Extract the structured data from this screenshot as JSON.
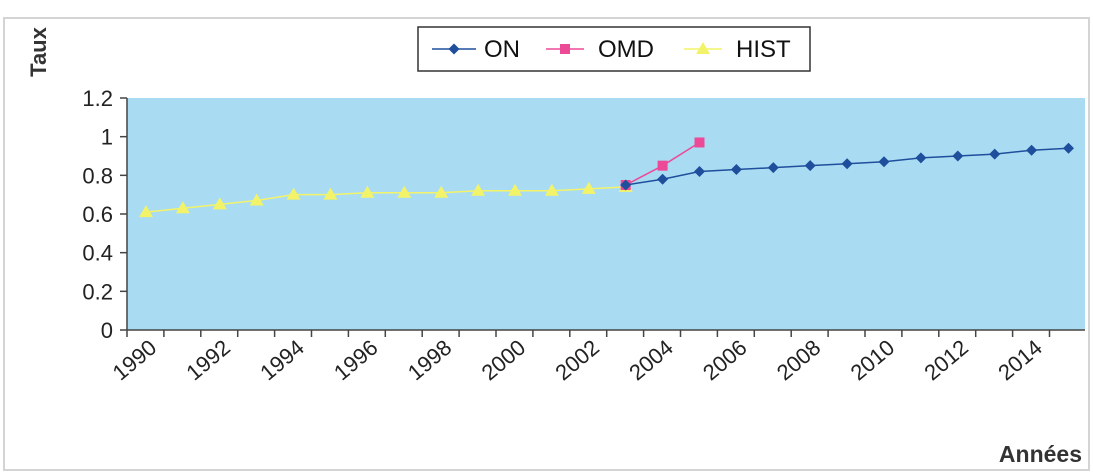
{
  "chart_data": {
    "type": "line",
    "title": "",
    "xlabel": "Années",
    "ylabel": "Taux",
    "xlim": [
      1990,
      2015
    ],
    "ylim": [
      0,
      1.2
    ],
    "yticks": [
      0,
      0.2,
      0.4,
      0.6,
      0.8,
      1,
      1.2
    ],
    "ytick_labels": [
      "0",
      "0.2",
      "0.4",
      "0.6",
      "0.8",
      "1",
      "1.2"
    ],
    "xtick_labels": [
      "1990",
      "1992",
      "1994",
      "1996",
      "1998",
      "2000",
      "2002",
      "2004",
      "2006",
      "2008",
      "2010",
      "2012",
      "2014"
    ],
    "grid": false,
    "legend_position": "top-center",
    "plot_background": "#a9dcf2",
    "series": [
      {
        "name": "ON",
        "color": "#1f4e9c",
        "marker": "diamond",
        "x": [
          2003,
          2004,
          2005,
          2006,
          2007,
          2008,
          2009,
          2010,
          2011,
          2012,
          2013,
          2014,
          2015
        ],
        "values": [
          0.75,
          0.78,
          0.82,
          0.83,
          0.84,
          0.85,
          0.86,
          0.87,
          0.89,
          0.9,
          0.91,
          0.93,
          0.94
        ]
      },
      {
        "name": "OMD",
        "color": "#ec4a97",
        "marker": "square",
        "x": [
          2003,
          2004,
          2005
        ],
        "values": [
          0.75,
          0.85,
          0.97
        ]
      },
      {
        "name": "HIST",
        "color": "#f3f36a",
        "marker": "triangle",
        "x": [
          1990,
          1991,
          1992,
          1993,
          1994,
          1995,
          1996,
          1997,
          1998,
          1999,
          2000,
          2001,
          2002,
          2003
        ],
        "values": [
          0.61,
          0.63,
          0.65,
          0.67,
          0.7,
          0.7,
          0.71,
          0.71,
          0.71,
          0.72,
          0.72,
          0.72,
          0.73,
          0.74
        ]
      }
    ]
  }
}
